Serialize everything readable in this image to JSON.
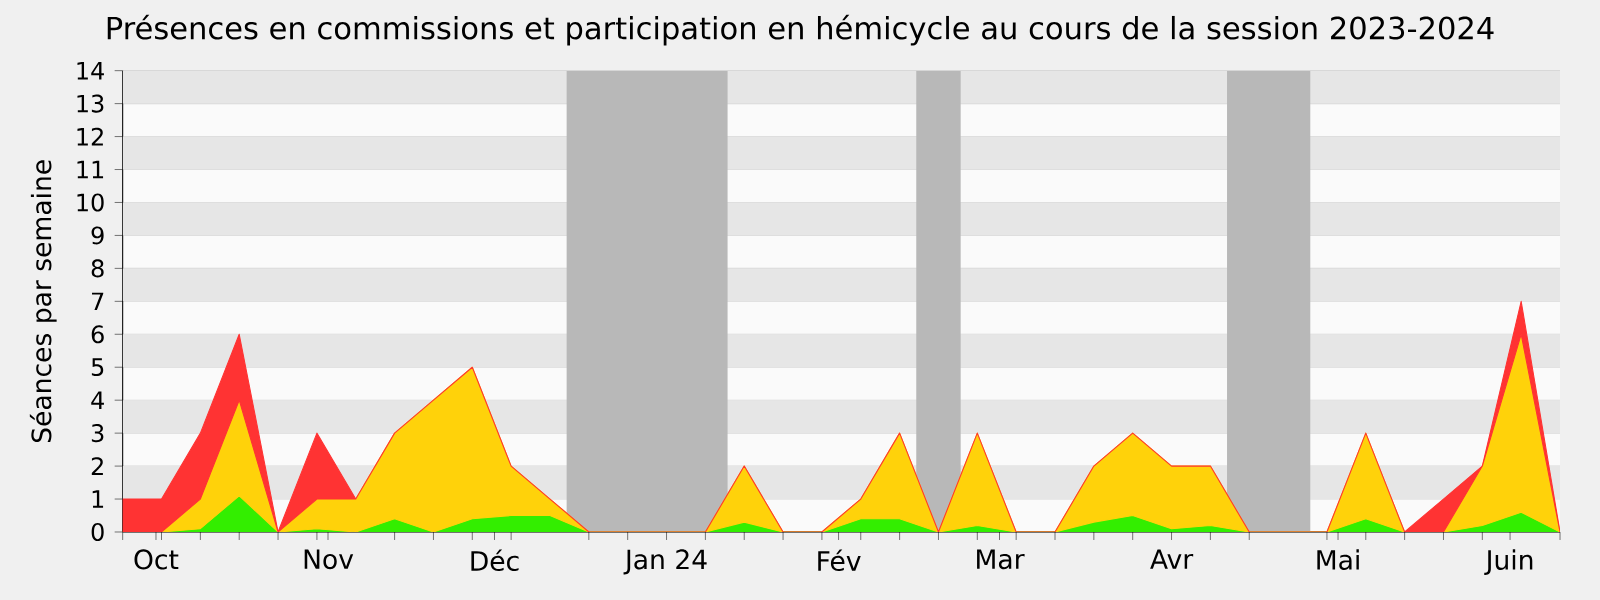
{
  "chart_data": {
    "type": "area",
    "stacked": true,
    "title": "Présences en commissions et participation en hémicycle au cours de la session 2023-2024",
    "ylabel": "Séances par semaine",
    "x": [
      "2023-09-25",
      "2023-10-02",
      "2023-10-09",
      "2023-10-16",
      "2023-10-23",
      "2023-10-30",
      "2023-11-06",
      "2023-11-13",
      "2023-11-20",
      "2023-11-27",
      "2023-12-04",
      "2023-12-11",
      "2023-12-18",
      "2023-12-25",
      "2024-01-01",
      "2024-01-08",
      "2024-01-15",
      "2024-01-22",
      "2024-01-29",
      "2024-02-05",
      "2024-02-12",
      "2024-02-19",
      "2024-02-26",
      "2024-03-04",
      "2024-03-11",
      "2024-03-18",
      "2024-03-25",
      "2024-04-01",
      "2024-04-08",
      "2024-04-15",
      "2024-04-22",
      "2024-04-29",
      "2024-05-06",
      "2024-05-13",
      "2024-05-20",
      "2024-05-27",
      "2024-06-03",
      "2024-06-10"
    ],
    "series": [
      {
        "color": "#33ee00",
        "values": [
          0,
          0,
          0.1,
          1.1,
          0,
          0.1,
          0,
          0.4,
          0,
          0.4,
          0.5,
          0.5,
          0,
          0,
          0,
          0,
          0.3,
          0,
          0,
          0.4,
          0.4,
          0,
          0.2,
          0,
          0,
          0.3,
          0.5,
          0.1,
          0.2,
          0,
          0,
          0,
          0.4,
          0,
          0,
          0.2,
          0.6,
          0
        ]
      },
      {
        "color": "#ffd20a",
        "values": [
          0,
          0,
          0.9,
          2.9,
          0,
          0.9,
          1,
          2.6,
          4,
          4.6,
          1.5,
          0.5,
          0,
          0,
          0,
          0,
          1.7,
          0,
          0,
          0.6,
          2.6,
          0,
          2.8,
          0,
          0,
          1.7,
          2.5,
          1.9,
          1.8,
          0,
          0,
          0,
          2.6,
          0,
          0,
          1.8,
          5.4,
          0
        ]
      },
      {
        "color": "#ff3333",
        "values": [
          1,
          1,
          2,
          2,
          0,
          2,
          0,
          0,
          0,
          0,
          0,
          0,
          0,
          0,
          0,
          0,
          0,
          0,
          0,
          0,
          0,
          0,
          0,
          0,
          0,
          0,
          0,
          0,
          0,
          0,
          0,
          0,
          0,
          0,
          1,
          0,
          1,
          0
        ]
      }
    ],
    "bands": [
      {
        "axis": "x",
        "from": "2023-12-14",
        "to": "2024-01-12",
        "color": "#b8b8b8"
      },
      {
        "axis": "x",
        "from": "2024-02-15",
        "to": "2024-02-23",
        "color": "#b8b8b8"
      },
      {
        "axis": "x",
        "from": "2024-04-11",
        "to": "2024-04-26",
        "color": "#b8b8b8"
      }
    ],
    "xlim": [
      "2023-09-25",
      "2024-06-10"
    ],
    "ylim": [
      0,
      14
    ],
    "xticks": [
      {
        "value": "2023-10-01",
        "label": "Oct"
      },
      {
        "value": "2023-11-01",
        "label": "Nov"
      },
      {
        "value": "2023-12-01",
        "label": "Déc"
      },
      {
        "value": "2024-01-01",
        "label": "Jan 24"
      },
      {
        "value": "2024-02-01",
        "label": "Fév"
      },
      {
        "value": "2024-03-01",
        "label": "Mar"
      },
      {
        "value": "2024-04-01",
        "label": "Avr"
      },
      {
        "value": "2024-05-01",
        "label": "Mai"
      },
      {
        "value": "2024-06-01",
        "label": "Juin"
      },
      {
        "value": "2023-09-25",
        "label": null
      },
      {
        "value": "2023-10-02",
        "label": null
      },
      {
        "value": "2023-10-09",
        "label": null
      },
      {
        "value": "2023-10-16",
        "label": null
      },
      {
        "value": "2023-10-23",
        "label": null
      },
      {
        "value": "2023-10-30",
        "label": null
      },
      {
        "value": "2023-11-13",
        "label": null
      },
      {
        "value": "2023-11-20",
        "label": null
      },
      {
        "value": "2023-11-27",
        "label": null
      },
      {
        "value": "2023-12-04",
        "label": null
      },
      {
        "value": "2023-12-18",
        "label": null
      },
      {
        "value": "2023-12-25",
        "label": null
      },
      {
        "value": "2024-01-08",
        "label": null
      },
      {
        "value": "2024-01-15",
        "label": null
      },
      {
        "value": "2024-01-22",
        "label": null
      },
      {
        "value": "2024-01-29",
        "label": null
      },
      {
        "value": "2024-02-05",
        "label": null
      },
      {
        "value": "2024-02-12",
        "label": null
      },
      {
        "value": "2024-02-19",
        "label": null
      },
      {
        "value": "2024-02-26",
        "label": null
      },
      {
        "value": "2024-03-04",
        "label": null
      },
      {
        "value": "2024-03-11",
        "label": null
      },
      {
        "value": "2024-03-18",
        "label": null
      },
      {
        "value": "2024-03-25",
        "label": null
      },
      {
        "value": "2024-04-08",
        "label": null
      },
      {
        "value": "2024-04-15",
        "label": null
      },
      {
        "value": "2024-04-29",
        "label": null
      },
      {
        "value": "2024-05-06",
        "label": null
      },
      {
        "value": "2024-05-13",
        "label": null
      },
      {
        "value": "2024-05-20",
        "label": null
      },
      {
        "value": "2024-05-27",
        "label": null
      },
      {
        "value": "2024-06-10",
        "label": null
      }
    ],
    "yticks": [
      0,
      1,
      2,
      3,
      4,
      5,
      6,
      7,
      8,
      9,
      10,
      11,
      12,
      13,
      14
    ],
    "grid": "y"
  }
}
